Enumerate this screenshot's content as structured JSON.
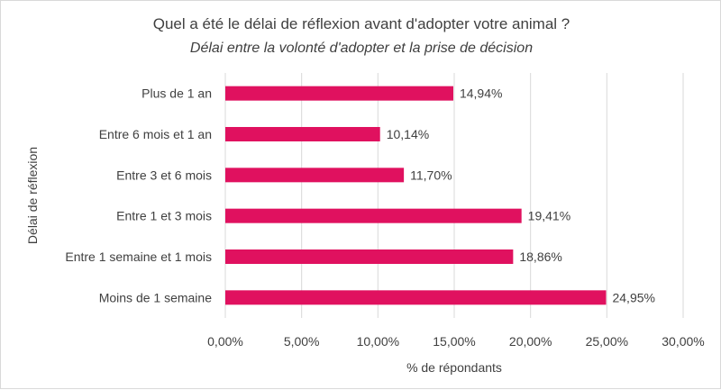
{
  "chart_data": {
    "type": "bar",
    "orientation": "horizontal",
    "title": "Quel a été le délai de réflexion avant d'adopter votre animal ?",
    "subtitle": "Délai entre la volonté d'adopter et la prise de décision",
    "xlabel": "% de répondants",
    "ylabel": "Délai de réflexion",
    "categories": [
      "Plus de 1 an",
      "Entre 6 mois et 1 an",
      "Entre 3 et 6 mois",
      "Entre 1 et 3 mois",
      "Entre 1 semaine et 1 mois",
      "Moins de 1 semaine"
    ],
    "values": [
      14.94,
      10.14,
      11.7,
      19.41,
      18.86,
      24.95
    ],
    "data_labels": [
      "14,94%",
      "10,14%",
      "11,70%",
      "19,41%",
      "18,86%",
      "24,95%"
    ],
    "xlim": [
      0,
      30
    ],
    "xticks": [
      0,
      5,
      10,
      15,
      20,
      25,
      30
    ],
    "xtick_labels": [
      "0,00%",
      "5,00%",
      "10,00%",
      "15,00%",
      "20,00%",
      "25,00%",
      "30,00%"
    ],
    "grid": "vertical",
    "legend": "none",
    "bar_color": "#e0115f",
    "grid_color": "#d9d9d9"
  }
}
